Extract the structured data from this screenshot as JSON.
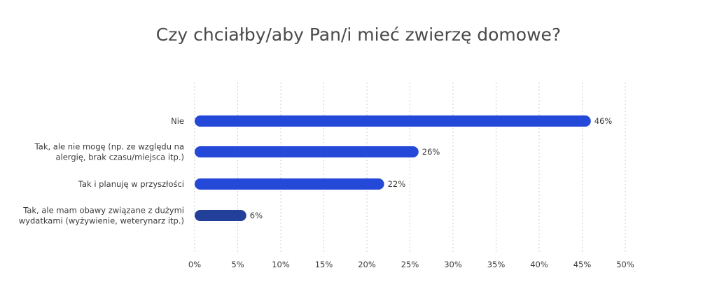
{
  "chart_data": {
    "type": "bar",
    "orientation": "horizontal",
    "title": "Czy chciałby/aby Pan/i mieć zwierzę domowe?",
    "categories": [
      [
        "Nie"
      ],
      [
        "Tak, ale nie mogę (np. ze względu na",
        "alergię, brak czasu/miejsca itp.)"
      ],
      [
        "Tak i planuję w przyszłości"
      ],
      [
        "Tak, ale mam obawy związane z dużymi",
        "wydatkami (wyżywienie, weterynarz itp.)"
      ]
    ],
    "values": [
      46,
      26,
      22,
      6
    ],
    "value_labels": [
      "46%",
      "26%",
      "22%",
      "6%"
    ],
    "bar_colors": [
      "#2448d8",
      "#2448d8",
      "#2448d8",
      "#223f9a"
    ],
    "xlim": [
      0,
      50
    ],
    "xticks": [
      0,
      5,
      10,
      15,
      20,
      25,
      30,
      35,
      40,
      45,
      50
    ],
    "xtick_labels": [
      "0%",
      "5%",
      "10%",
      "15%",
      "20%",
      "25%",
      "30%",
      "35%",
      "40%",
      "45%",
      "50%"
    ],
    "grid": true,
    "legend": "none"
  }
}
